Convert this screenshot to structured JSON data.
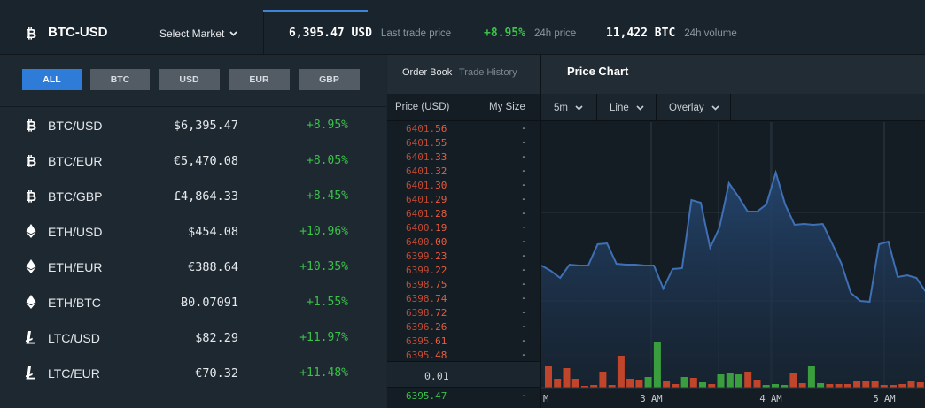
{
  "header": {
    "pair": "BTC-USD",
    "select_market": "Select Market",
    "last_price": "6,395.47 USD",
    "last_price_label": "Last trade price",
    "change_24h": "+8.95%",
    "change_24h_label": "24h price",
    "volume_24h": "11,422 BTC",
    "volume_24h_label": "24h volume"
  },
  "filters": [
    "ALL",
    "BTC",
    "USD",
    "EUR",
    "GBP"
  ],
  "markets": [
    {
      "coin": "btc",
      "name": "BTC/USD",
      "price": "$6,395.47",
      "change": "+8.95%"
    },
    {
      "coin": "btc",
      "name": "BTC/EUR",
      "price": "€5,470.08",
      "change": "+8.05%"
    },
    {
      "coin": "btc",
      "name": "BTC/GBP",
      "price": "£4,864.33",
      "change": "+8.45%"
    },
    {
      "coin": "eth",
      "name": "ETH/USD",
      "price": "$454.08",
      "change": "+10.96%"
    },
    {
      "coin": "eth",
      "name": "ETH/EUR",
      "price": "€388.64",
      "change": "+10.35%"
    },
    {
      "coin": "eth",
      "name": "ETH/BTC",
      "price": "Ƀ0.07091",
      "change": "+1.55%"
    },
    {
      "coin": "ltc",
      "name": "LTC/USD",
      "price": "$82.29",
      "change": "+11.97%"
    },
    {
      "coin": "ltc",
      "name": "LTC/EUR",
      "price": "€70.32",
      "change": "+11.48%"
    }
  ],
  "orderbook": {
    "tabs": [
      "Order Book",
      "Trade History"
    ],
    "price_header": "Price (USD)",
    "size_header": "My Size",
    "asks": [
      {
        "base": "6401.",
        "hi": "56",
        "size": "-"
      },
      {
        "base": "6401.",
        "hi": "55",
        "size": "-"
      },
      {
        "base": "6401.",
        "hi": "33",
        "size": "-"
      },
      {
        "base": "6401.",
        "hi": "32",
        "size": "-"
      },
      {
        "base": "6401.",
        "hi": "30",
        "size": "-"
      },
      {
        "base": "6401.",
        "hi": "29",
        "size": "-"
      },
      {
        "base": "6401.",
        "hi": "28",
        "size": "-"
      },
      {
        "base": "6400.",
        "hi": "19",
        "size": "-"
      },
      {
        "base": "6400.",
        "hi": "00",
        "size": "-"
      },
      {
        "base": "6399.",
        "hi": "23",
        "size": "-"
      },
      {
        "base": "6399.",
        "hi": "22",
        "size": "-"
      },
      {
        "base": "6398.",
        "hi": "75",
        "size": "-"
      },
      {
        "base": "6398.",
        "hi": "74",
        "size": "-"
      },
      {
        "base": "6398.",
        "hi": "72",
        "size": "-"
      },
      {
        "base": "6396.",
        "hi": "26",
        "size": "-"
      },
      {
        "base": "6395.",
        "hi": "61",
        "size": "-"
      },
      {
        "base": "6395.",
        "hi": "48",
        "size": "-"
      }
    ],
    "spread": "0.01",
    "bids": [
      {
        "base": "6395.",
        "hi": "47",
        "size": "-"
      }
    ]
  },
  "chart": {
    "title": "Price Chart",
    "interval": "5m",
    "style": "Line",
    "overlay": "Overlay",
    "x_ticks": [
      "M",
      "3 AM",
      "4 AM",
      "5 AM"
    ],
    "colors": {
      "line": "#3f6fb4",
      "up": "#3a9e3f",
      "down": "#c1452a"
    }
  },
  "chart_data": {
    "type": "line",
    "price": [
      300,
      306,
      314,
      299,
      300,
      300,
      276,
      275,
      298,
      299,
      299,
      300,
      300,
      326,
      304,
      303,
      226,
      229,
      280,
      257,
      207,
      222,
      239,
      239,
      231,
      195,
      231,
      254,
      253,
      254,
      253,
      275,
      298,
      331,
      340,
      341,
      276,
      273,
      313,
      311,
      314,
      330
    ],
    "volume": [
      {
        "v": 24,
        "dir": "down"
      },
      {
        "v": 10,
        "dir": "down"
      },
      {
        "v": 22,
        "dir": "down"
      },
      {
        "v": 10,
        "dir": "down"
      },
      {
        "v": 2,
        "dir": "down"
      },
      {
        "v": 3,
        "dir": "down"
      },
      {
        "v": 18,
        "dir": "down"
      },
      {
        "v": 3,
        "dir": "down"
      },
      {
        "v": 36,
        "dir": "down"
      },
      {
        "v": 10,
        "dir": "down"
      },
      {
        "v": 9,
        "dir": "down"
      },
      {
        "v": 12,
        "dir": "up"
      },
      {
        "v": 52,
        "dir": "up"
      },
      {
        "v": 7,
        "dir": "down"
      },
      {
        "v": 4,
        "dir": "down"
      },
      {
        "v": 12,
        "dir": "up"
      },
      {
        "v": 11,
        "dir": "down"
      },
      {
        "v": 6,
        "dir": "up"
      },
      {
        "v": 4,
        "dir": "down"
      },
      {
        "v": 15,
        "dir": "up"
      },
      {
        "v": 16,
        "dir": "up"
      },
      {
        "v": 15,
        "dir": "up"
      },
      {
        "v": 18,
        "dir": "down"
      },
      {
        "v": 9,
        "dir": "down"
      },
      {
        "v": 3,
        "dir": "up"
      },
      {
        "v": 4,
        "dir": "up"
      },
      {
        "v": 3,
        "dir": "up"
      },
      {
        "v": 16,
        "dir": "down"
      },
      {
        "v": 5,
        "dir": "down"
      },
      {
        "v": 24,
        "dir": "up"
      },
      {
        "v": 5,
        "dir": "up"
      },
      {
        "v": 4,
        "dir": "down"
      },
      {
        "v": 4,
        "dir": "down"
      },
      {
        "v": 4,
        "dir": "down"
      },
      {
        "v": 8,
        "dir": "down"
      },
      {
        "v": 8,
        "dir": "down"
      },
      {
        "v": 8,
        "dir": "down"
      },
      {
        "v": 3,
        "dir": "down"
      },
      {
        "v": 3,
        "dir": "down"
      },
      {
        "v": 4,
        "dir": "down"
      },
      {
        "v": 8,
        "dir": "down"
      },
      {
        "v": 6,
        "dir": "down"
      }
    ]
  }
}
